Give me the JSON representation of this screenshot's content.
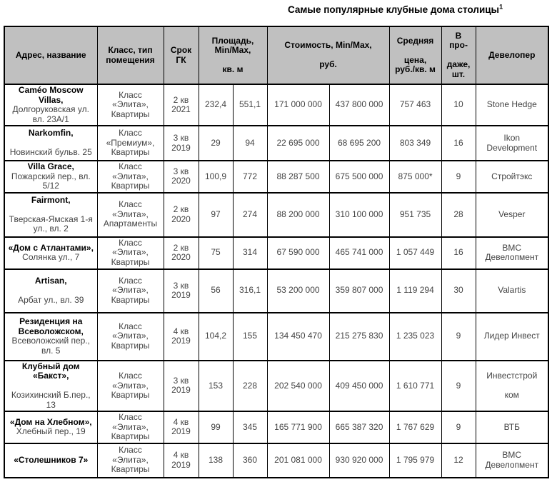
{
  "title": {
    "text": "Самые популярные клубные дома столицы",
    "superscript": "1"
  },
  "table": {
    "headers": {
      "address": "Адрес, название",
      "class_type": "Класс, тип\nпомещения",
      "term": "Срок\nГК",
      "area": "Площадь,\nMin/Max,\n\nкв. м",
      "price": "Стоимость, Min/Max,\n\nруб.",
      "avg_price": "Средняя\n\nцена,\nруб./кв. м",
      "on_sale": "В\nпро-\n\nдаже,\nшт.",
      "developer": "Девелопер"
    },
    "rows": [
      {
        "name": "Caméo Moscow Villas,",
        "address": "Долгоруковская ул. вл. 23А/1",
        "gap": false,
        "class_type": "Класс «Элита», Квартиры",
        "term": "2 кв\n2021",
        "area_min": "232,4",
        "area_max": "551,1",
        "price_min": "171 000 000",
        "price_max": "437 800 000",
        "avg_price": "757 463",
        "on_sale": "10",
        "developer": "Stone Hedge"
      },
      {
        "name": "Narkomfin,",
        "address": "Новинский бульв. 25",
        "gap": true,
        "class_type": "Класс «Премиум», Квартиры",
        "term": "3 кв\n2019",
        "area_min": "29",
        "area_max": "94",
        "price_min": "22 695 000",
        "price_max": "68 695 200",
        "avg_price": "803 349",
        "on_sale": "16",
        "developer": "Ikon Development"
      },
      {
        "name": "Villa Grace,",
        "address": "Пожарский пер., вл. 5/12",
        "gap": false,
        "class_type": "Класс «Элита», Квартиры",
        "term": "3 кв\n2020",
        "area_min": "100,9",
        "area_max": "772",
        "price_min": "88 287 500",
        "price_max": "675 500 000",
        "avg_price": "875 000*",
        "on_sale": "9",
        "developer": "Стройтэкс"
      },
      {
        "name": "Fairmont,",
        "address": "Тверская-Ямская 1-я ул., вл. 2",
        "gap": true,
        "class_type": "Класс «Элита», Апартаменты",
        "term": "2 кв\n2020",
        "area_min": "97",
        "area_max": "274",
        "price_min": "88 200 000",
        "price_max": "310 100 000",
        "avg_price": "951 735",
        "on_sale": "28",
        "developer": "Vesper"
      },
      {
        "name": "«Дом с Атлантами»,",
        "address": "Солянка ул., 7",
        "gap": false,
        "class_type": "Класс «Элита», Квартиры",
        "term": "2 кв\n2020",
        "area_min": "75",
        "area_max": "314",
        "price_min": "67 590 000",
        "price_max": "465 741 000",
        "avg_price": "1 057 449",
        "on_sale": "16",
        "developer": "ВМС\nДевелопмент"
      },
      {
        "name": "Artisan,",
        "address": "Арбат ул., вл. 39",
        "gap": true,
        "class_type": "Класс «Элита», Квартиры",
        "term": "3 кв\n2019",
        "area_min": "56",
        "area_max": "316,1",
        "price_min": "53 200 000",
        "price_max": "359 807 000",
        "avg_price": "1 119 294",
        "on_sale": "30",
        "developer": "Valartis"
      },
      {
        "name": "Резиденция на Всеволожском,",
        "address": "Всеволожский пер., вл. 5",
        "gap": false,
        "class_type": "Класс «Элита», Квартиры",
        "term": "4 кв\n2019",
        "area_min": "104,2",
        "area_max": "155",
        "price_min": "134 450 470",
        "price_max": "215 275 830",
        "avg_price": "1 235 023",
        "on_sale": "9",
        "developer": "Лидер Инвест"
      },
      {
        "name": "Клубный дом\n«Бакст»,",
        "address": "Козихинский Б.пер., 13",
        "gap": true,
        "class_type": "Класс «Элита», Квартиры",
        "term": "3 кв\n2019",
        "area_min": "153",
        "area_max": "228",
        "price_min": "202 540 000",
        "price_max": "409 450 000",
        "avg_price": "1 610 771",
        "on_sale": "9",
        "developer": "Инвестстрой\n\nком"
      },
      {
        "name": "«Дом на Хлебном»,",
        "address": "Хлебный пер., 19",
        "gap": false,
        "class_type": "Класс «Элита», Квартиры",
        "term": "4 кв\n2019",
        "area_min": "99",
        "area_max": "345",
        "price_min": "165 771 900",
        "price_max": "665 387 320",
        "avg_price": "1 767 629",
        "on_sale": "9",
        "developer": "ВТБ"
      },
      {
        "name": "«Столешников 7»",
        "address": "",
        "gap": false,
        "class_type": "Класс «Элита», Квартиры",
        "term": "4 кв\n2019",
        "area_min": "138",
        "area_max": "360",
        "price_min": "201 081 000",
        "price_max": "930 920 000",
        "avg_price": "1 795 979",
        "on_sale": "12",
        "developer": "ВМС\nДевелопмент"
      }
    ]
  }
}
